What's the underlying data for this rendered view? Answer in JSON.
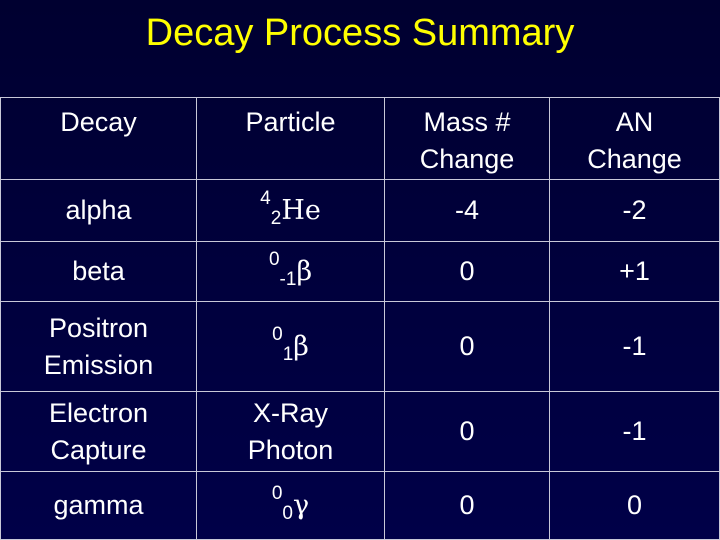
{
  "header": {
    "title": "Decay Process Summary"
  },
  "table": {
    "columns": [
      "Decay",
      "Particle",
      "Mass # Change",
      "AN Change"
    ],
    "rows": [
      [
        "alpha",
        {
          "sup": "4",
          "sub": "2",
          "symbol": "He"
        },
        "-4",
        "-2"
      ],
      [
        "beta",
        {
          "sup": "0",
          "sub": "-1",
          "symbol": "β"
        },
        "0",
        "+1"
      ],
      [
        "Positron Emission",
        {
          "sup": "0",
          "sub": "1",
          "symbol": "β"
        },
        "0",
        "-1"
      ],
      [
        "Electron Capture",
        {
          "text": "X-Ray Photon"
        },
        "0",
        "-1"
      ],
      [
        "gamma",
        {
          "sup": "0",
          "sub": "0",
          "symbol": "γ"
        },
        "0",
        "0"
      ]
    ]
  }
}
